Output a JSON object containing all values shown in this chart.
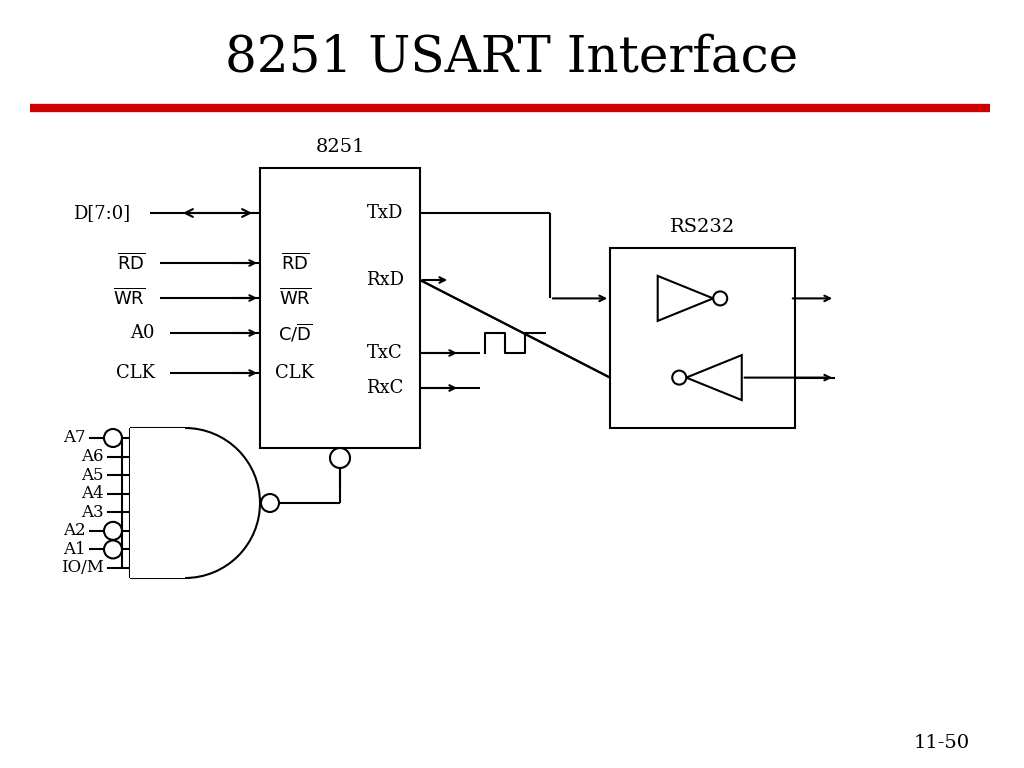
{
  "title": "8251 USART Interface",
  "title_fontsize": 36,
  "title_font": "serif",
  "bg_color": "#ffffff",
  "line_color": "#000000",
  "red_line_color": "#cc0000",
  "page_number": "11-50",
  "chip_label": "8251",
  "rs232_label": "RS232",
  "left_pins": [
    "D[7:0]",
    "RD",
    "WR",
    "A0",
    "CLK"
  ],
  "right_pins": [
    "TxD",
    "RxD",
    "TxC",
    "RxC"
  ],
  "gate_pins": [
    "A7",
    "A6",
    "A5",
    "A4",
    "A3",
    "A2",
    "A1",
    "IO/M"
  ]
}
